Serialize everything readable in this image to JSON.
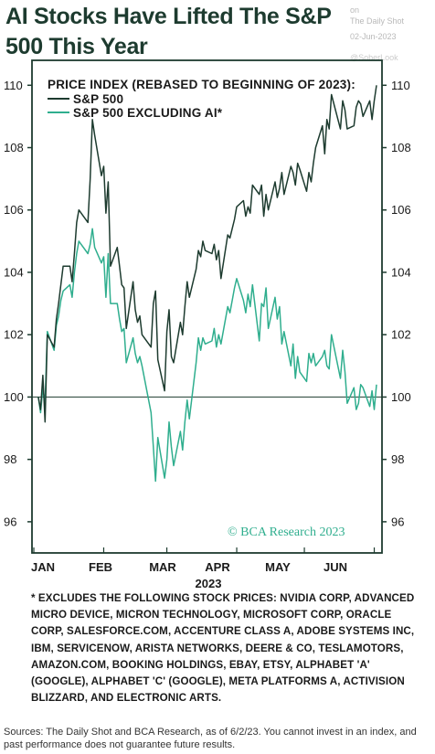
{
  "title": "AI Stocks Have Lifted The S&P 500 This Year",
  "watermark": {
    "line1": "on",
    "line2": "The Daily Shot",
    "line3": "02-Jun-2023",
    "line4": "@SoberLook"
  },
  "footnote": "* EXCLUDES THE FOLLOWING STOCK PRICES: NVIDIA CORP, ADVANCED MICRO DEVICE, MICRON TECHNOLOGY, MICROSOFT CORP, ORACLE CORP, SALESFORCE.COM, ACCENTURE CLASS A, ADOBE SYSTEMS INC, IBM, SERVICENOW, ARISTA NETWORKS, DEERE & CO, TESLAMOTORS, AMAZON.COM, BOOKING HOLDINGS, EBAY, ETSY, ALPHABET 'A' (GOOGLE), ALPHABET 'C' (GOOGLE), META PLATFORMS A, ACTIVISION BLIZZARD, AND ELECTRONIC ARTS.",
  "sources": "Sources: The Daily Shot and BCA Research, as of 6/2/23. You cannot invest in an index, and past performance does not guarantee future results.",
  "chart_data": {
    "type": "line",
    "title": "PRICE INDEX (REBASED TO BEGINNING OF 2023):",
    "xlabel": "2023",
    "ylabel": "",
    "credit": "© BCA Research 2023",
    "ylim": [
      95,
      110.8
    ],
    "yticks": [
      96,
      98,
      100,
      102,
      104,
      106,
      108,
      110
    ],
    "ytick_labels": [
      "96",
      "98",
      "100",
      "102",
      "104",
      "106",
      "108",
      "110"
    ],
    "xticks": [
      "JAN",
      "FEB",
      "MAR",
      "APR",
      "MAY",
      "JUN"
    ],
    "xlim": [
      0,
      152
    ],
    "grid": false,
    "reference_line": 100,
    "legend_position": "top-left",
    "colors": {
      "sp500": "#1d3b2f",
      "ex_ai": "#2fae8e",
      "axis": "#1d3b2f",
      "reference": "#1d3b2f"
    },
    "series": [
      {
        "name": "S&P 500",
        "color": "#1d3b2f",
        "x": [
          2,
          3,
          4,
          5,
          6,
          9,
          10,
          11,
          12,
          13,
          16,
          17,
          18,
          19,
          20,
          24,
          25,
          26,
          27,
          30,
          31,
          32,
          33,
          34,
          37,
          38,
          39,
          40,
          41,
          44,
          45,
          46,
          47,
          48,
          52,
          53,
          54,
          55,
          58,
          59,
          60,
          61,
          62,
          65,
          66,
          67,
          68,
          69,
          72,
          73,
          74,
          75,
          76,
          79,
          80,
          81,
          82,
          83,
          86,
          87,
          88,
          89,
          90,
          93,
          94,
          95,
          96,
          97,
          100,
          101,
          102,
          103,
          104,
          107,
          108,
          109,
          110,
          111,
          114,
          115,
          116,
          117,
          118,
          121,
          122,
          123,
          124,
          125,
          128,
          129,
          130,
          131,
          132,
          136,
          137,
          138,
          139,
          142,
          143,
          144,
          145,
          146,
          149,
          150,
          151,
          152
        ],
        "y": [
          100.0,
          99.6,
          100.7,
          99.2,
          102.0,
          101.6,
          102.5,
          103.0,
          103.6,
          104.2,
          104.2,
          103.7,
          104.6,
          105.6,
          106.0,
          105.6,
          107.0,
          108.9,
          108.4,
          107.1,
          107.4,
          105.9,
          106.9,
          104.2,
          104.8,
          104.2,
          103.6,
          103.5,
          102.2,
          103.7,
          102.8,
          102.4,
          102.6,
          102.0,
          101.6,
          103.0,
          103.4,
          101.2,
          100.2,
          102.1,
          102.8,
          101.3,
          101.1,
          102.4,
          102.0,
          102.9,
          103.7,
          103.2,
          104.1,
          104.7,
          104.5,
          105.0,
          104.7,
          104.6,
          104.9,
          104.4,
          104.7,
          103.8,
          105.2,
          105.1,
          105.4,
          105.7,
          106.1,
          106.3,
          105.8,
          106.1,
          105.9,
          106.8,
          106.5,
          106.8,
          105.8,
          106.5,
          106.0,
          106.9,
          106.4,
          106.7,
          107.2,
          106.5,
          107.4,
          107.2,
          106.8,
          107.5,
          107.3,
          106.6,
          107.2,
          106.9,
          107.5,
          108.0,
          108.7,
          107.8,
          108.9,
          108.6,
          109.7,
          108.6,
          109.5,
          109.2,
          108.6,
          108.7,
          109.3,
          109.5,
          109.4,
          109.0,
          109.5,
          108.9,
          109.5,
          110.0
        ]
      },
      {
        "name": "S&P 500 EXCLUDING AI*",
        "color": "#2fae8e",
        "x": [
          2,
          3,
          4,
          5,
          6,
          9,
          10,
          11,
          12,
          13,
          16,
          17,
          18,
          19,
          20,
          24,
          25,
          26,
          27,
          30,
          31,
          32,
          33,
          34,
          37,
          38,
          39,
          40,
          41,
          44,
          45,
          46,
          47,
          48,
          52,
          53,
          54,
          55,
          58,
          59,
          60,
          61,
          62,
          65,
          66,
          67,
          68,
          69,
          72,
          73,
          74,
          75,
          76,
          79,
          80,
          81,
          82,
          83,
          86,
          87,
          88,
          89,
          90,
          93,
          94,
          95,
          96,
          97,
          100,
          101,
          102,
          103,
          104,
          107,
          108,
          109,
          110,
          111,
          114,
          115,
          116,
          117,
          118,
          121,
          122,
          123,
          124,
          125,
          128,
          129,
          130,
          131,
          132,
          136,
          137,
          138,
          139,
          142,
          143,
          144,
          145,
          146,
          149,
          150,
          151,
          152
        ],
        "y": [
          100.0,
          99.5,
          100.3,
          99.8,
          102.1,
          101.5,
          102.3,
          102.6,
          103.1,
          103.4,
          103.6,
          103.2,
          104.0,
          104.6,
          105.0,
          104.6,
          104.9,
          105.4,
          104.8,
          104.3,
          104.5,
          103.2,
          104.6,
          103.0,
          103.0,
          102.5,
          102.1,
          102.2,
          101.1,
          101.9,
          101.4,
          101.1,
          101.3,
          101.0,
          99.5,
          98.4,
          97.3,
          98.7,
          97.4,
          98.0,
          99.2,
          98.4,
          97.8,
          98.9,
          98.3,
          99.2,
          99.9,
          99.3,
          101.1,
          101.9,
          101.5,
          101.9,
          101.7,
          101.8,
          102.2,
          101.6,
          102.0,
          101.7,
          102.9,
          102.7,
          103.1,
          103.5,
          103.8,
          103.1,
          102.7,
          103.3,
          102.9,
          103.6,
          101.8,
          103.0,
          102.9,
          103.5,
          102.2,
          103.2,
          102.5,
          102.9,
          101.7,
          102.1,
          101.0,
          101.7,
          100.6,
          101.3,
          100.8,
          100.5,
          101.4,
          101.1,
          101.4,
          101.0,
          101.3,
          101.5,
          101.0,
          100.9,
          102.0,
          100.6,
          101.5,
          100.8,
          99.8,
          100.3,
          99.6,
          99.8,
          100.4,
          100.3,
          99.7,
          100.2,
          99.6,
          100.4
        ]
      }
    ]
  }
}
